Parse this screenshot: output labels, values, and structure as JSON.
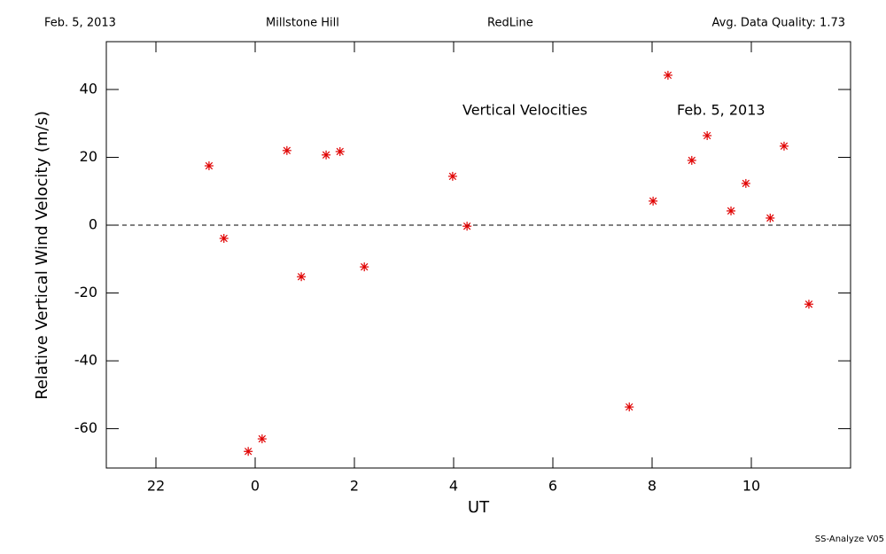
{
  "chart_data": {
    "type": "scatter",
    "header": [
      "Feb. 5, 2013",
      "Millstone Hill",
      "RedLine",
      "Avg. Data Quality: 1.73"
    ],
    "annotations": [
      "Vertical Velocities",
      "Feb. 5, 2013"
    ],
    "footer": "SS-Analyze V05",
    "xlabel": "UT",
    "ylabel": "Relative Vertical Wind Velocity (m/s)",
    "xlim": [
      -3,
      12
    ],
    "xticks": [
      {
        "value": -2,
        "label": "22"
      },
      0,
      2,
      4,
      6,
      8,
      10
    ],
    "ylim": [
      -71.6,
      54.1
    ],
    "yticks": [
      -60,
      -40,
      -20,
      0,
      20,
      40
    ],
    "reference_line": 0,
    "color": "#e00000",
    "x": [
      -0.93,
      -0.63,
      -0.14,
      0.14,
      0.64,
      0.93,
      1.43,
      1.71,
      2.2,
      3.98,
      4.27,
      7.54,
      8.02,
      8.32,
      8.8,
      9.11,
      9.59,
      9.89,
      10.38,
      10.66,
      11.16
    ],
    "values": [
      17.5,
      -3.9,
      -66.7,
      -63.0,
      22.0,
      -15.2,
      20.7,
      21.7,
      -12.3,
      14.4,
      -0.3,
      -53.6,
      7.1,
      44.2,
      19.1,
      26.4,
      4.2,
      12.3,
      2.1,
      23.3,
      -23.3
    ]
  }
}
